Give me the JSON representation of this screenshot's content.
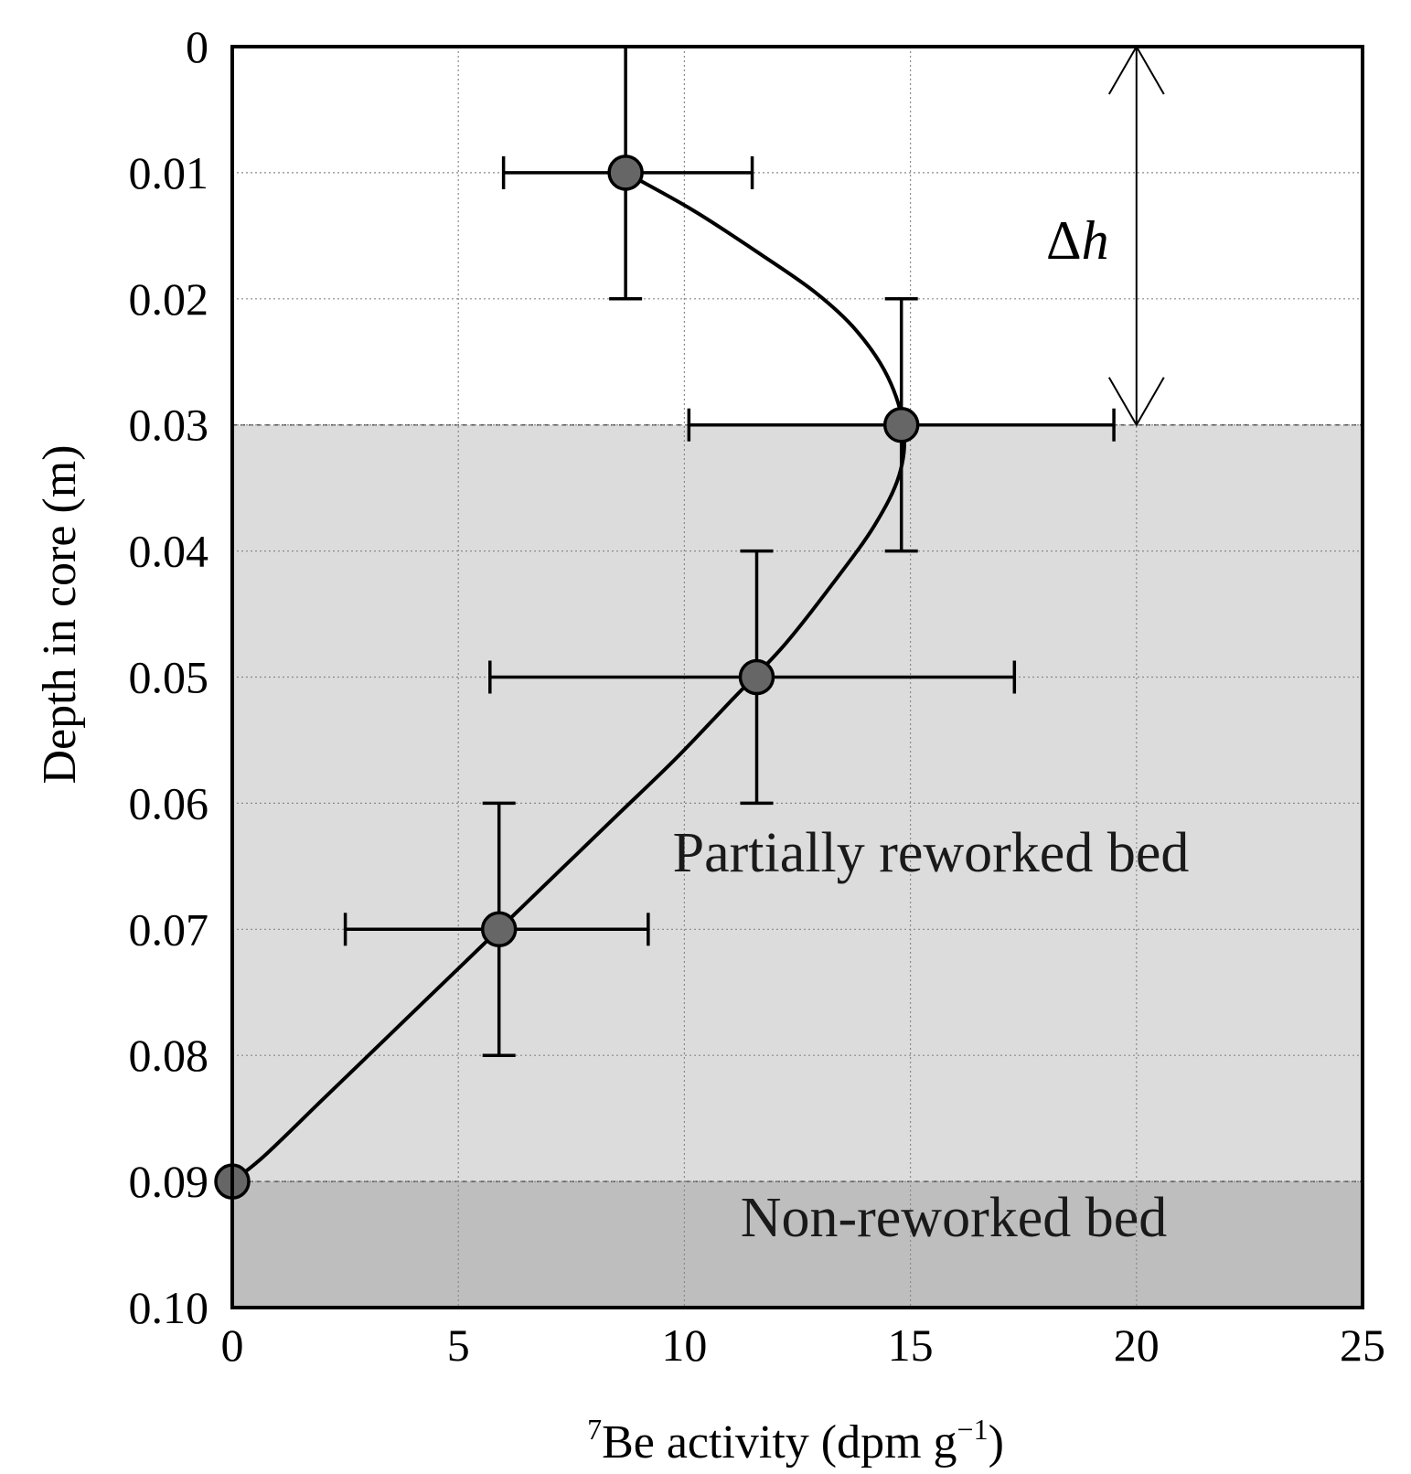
{
  "chart_data": {
    "type": "scatter",
    "title": "",
    "xlabel_prefix_sup": "7",
    "xlabel_main": "Be activity (dpm g",
    "xlabel_exp": "−1",
    "xlabel_suffix": ")",
    "ylabel": "Depth in core (m)",
    "xlim": [
      0,
      25
    ],
    "ylim": [
      0,
      0.1
    ],
    "y_inverted": true,
    "x_ticks": [
      0,
      5,
      10,
      15,
      20,
      25
    ],
    "x_tick_labels": [
      "0",
      "5",
      "10",
      "15",
      "20",
      "25"
    ],
    "y_ticks": [
      0,
      0.01,
      0.02,
      0.03,
      0.04,
      0.05,
      0.06,
      0.07,
      0.08,
      0.09,
      0.1
    ],
    "y_tick_labels": [
      "0",
      "0.01",
      "0.02",
      "0.03",
      "0.04",
      "0.05",
      "0.06",
      "0.07",
      "0.08",
      "0.09",
      "0.10"
    ],
    "grid": true,
    "points": [
      {
        "x": 8.7,
        "y": 0.01,
        "x_err": [
          6.0,
          11.5
        ],
        "y_err": [
          0.0,
          0.02
        ]
      },
      {
        "x": 14.8,
        "y": 0.03,
        "x_err": [
          10.1,
          19.5
        ],
        "y_err": [
          0.02,
          0.04
        ]
      },
      {
        "x": 11.6,
        "y": 0.05,
        "x_err": [
          5.7,
          17.3
        ],
        "y_err": [
          0.04,
          0.06
        ]
      },
      {
        "x": 5.9,
        "y": 0.07,
        "x_err": [
          2.5,
          9.2
        ],
        "y_err": [
          0.06,
          0.08
        ]
      },
      {
        "x": 0.0,
        "y": 0.09,
        "x_err": null,
        "y_err": null
      }
    ],
    "fit_curve": [
      [
        8.7,
        0.01
      ],
      [
        10.2,
        0.013
      ],
      [
        11.7,
        0.0165
      ],
      [
        12.9,
        0.0195
      ],
      [
        13.8,
        0.0225
      ],
      [
        14.5,
        0.0262
      ],
      [
        14.85,
        0.0303
      ],
      [
        14.75,
        0.034
      ],
      [
        14.2,
        0.038
      ],
      [
        13.3,
        0.0425
      ],
      [
        12.2,
        0.0475
      ],
      [
        11.0,
        0.052
      ],
      [
        9.8,
        0.0565
      ],
      [
        8.5,
        0.061
      ],
      [
        7.2,
        0.0655
      ],
      [
        5.9,
        0.07
      ],
      [
        4.6,
        0.0745
      ],
      [
        3.3,
        0.079
      ],
      [
        2.0,
        0.0835
      ],
      [
        0.7,
        0.088
      ],
      [
        0.0,
        0.09
      ]
    ],
    "zones": [
      {
        "name": "Partially reworked bed",
        "y_from": 0.03,
        "y_to": 0.09,
        "color": "#dcdcdc"
      },
      {
        "name": "Non-reworked bed",
        "y_from": 0.09,
        "y_to": 0.1,
        "color": "#bebebe"
      }
    ],
    "annotations": [
      {
        "text_delta": "Δ",
        "text_var": "h",
        "x": 20,
        "y_from": 0.0,
        "y_to": 0.03
      }
    ],
    "marker_fill": "#666666",
    "line_color": "#000000"
  }
}
